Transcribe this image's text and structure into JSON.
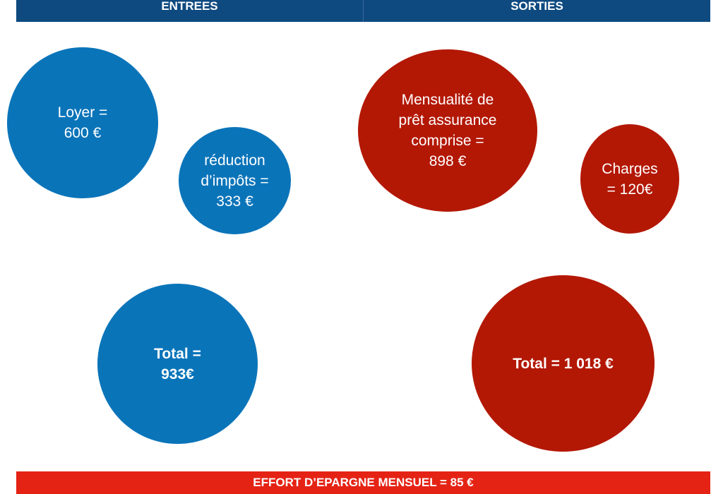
{
  "header": {
    "left_title": "ENTREES",
    "right_title": "SORTIES"
  },
  "entrees": {
    "loyer": "Loyer =\n600 €",
    "reduction": "réduction\nd’impôts =\n333 €",
    "total": "Total =\n933€"
  },
  "sorties": {
    "mensualite": "Mensualité de\nprêt  assurance\ncomprise =\n898 €",
    "charges": "Charges\n= 120€",
    "total": "Total = 1 018 €"
  },
  "footer": {
    "label": "EFFORT D’EPARGNE MENSUEL = 85 €"
  },
  "colors": {
    "header_bg": "#0e4a80",
    "entrees_bubble": "#0a74b9",
    "sorties_bubble": "#b31805",
    "footer_bg": "#e52315"
  }
}
